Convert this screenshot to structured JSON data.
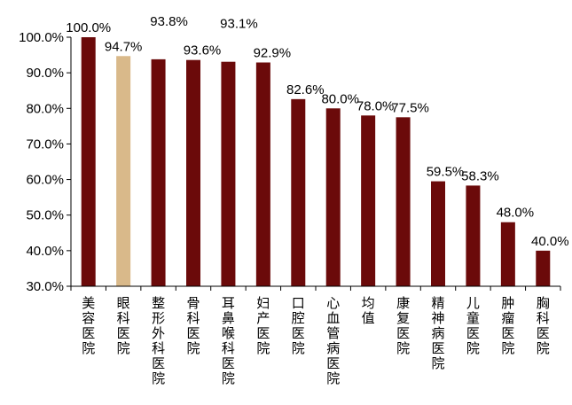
{
  "chart_data": {
    "type": "bar",
    "categories": [
      "美容医院",
      "眼科医院",
      "整形外科医院",
      "骨科医院",
      "耳鼻喉科医院",
      "妇产医院",
      "口腔医院",
      "心血管病医院",
      "均值",
      "康复医院",
      "精神病医院",
      "儿童医院",
      "肿瘤医院",
      "胸科医院"
    ],
    "values": [
      100.0,
      94.7,
      93.8,
      93.6,
      93.1,
      92.9,
      82.6,
      80.0,
      78.0,
      77.5,
      59.5,
      58.3,
      48.0,
      40.0
    ],
    "data_labels": [
      "100.0%",
      "94.7%",
      "93.8%",
      "93.6%",
      "93.1%",
      "92.9%",
      "82.6%",
      "80.0%",
      "78.0%",
      "77.5%",
      "59.5%",
      "58.3%",
      "48.0%",
      "40.0%"
    ],
    "highlight_index": 1,
    "title": "",
    "xlabel": "",
    "ylabel": "",
    "ylim": [
      30,
      100
    ],
    "yticks": [
      30,
      40,
      50,
      60,
      70,
      80,
      90,
      100
    ],
    "ytick_labels": [
      "30.0%",
      "40.0%",
      "50.0%",
      "60.0%",
      "70.0%",
      "80.0%",
      "90.0%",
      "100.0%"
    ],
    "grid": false,
    "legend": "none",
    "colors": {
      "bar": "#6B0A0A",
      "highlight": "#D9B98A",
      "axis": "#000000"
    }
  }
}
